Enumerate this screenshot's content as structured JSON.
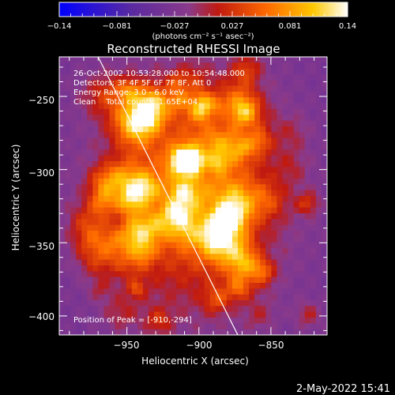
{
  "footer_date": "2-May-2022 15:41",
  "colorbar": {
    "ticks": [
      "-0.14",
      "-0.081",
      "-0.027",
      "0.027",
      "0.081",
      "0.14"
    ],
    "units": "(photons cm⁻² s⁻¹ asec⁻²)",
    "colors": [
      "#0000ff",
      "#5a2aa0",
      "#8a3a8a",
      "#c01a10",
      "#ff6a00",
      "#ffc800",
      "#ffffff"
    ]
  },
  "info": {
    "line1": "26-Oct-2002 10:53:28.000 to 10:54:48.000",
    "line2": "Detectors: 3F 4F 5F 6F 7F 8F, Att 0",
    "line3": "Energy Range: 3.0 - 6.0 keV",
    "line4": "Clean    Total counts: 1.65E+04",
    "peak": "Position of Peak = [-910,-294]"
  },
  "chart_data": {
    "type": "heatmap",
    "title": "Reconstructed RHESSI Image",
    "xlabel": "Heliocentric X (arcsec)",
    "ylabel": "Heliocentric Y (arcsec)",
    "xlim": [
      -997,
      -811
    ],
    "ylim": [
      -413,
      -223
    ],
    "xticks": [
      -950,
      -900,
      -850
    ],
    "yticks": [
      -250,
      -300,
      -350,
      -400
    ],
    "peak": {
      "x": -910,
      "y": -294,
      "value": 0.14
    },
    "value_range": [
      -0.14,
      0.14
    ],
    "limb_line": [
      [
        -970,
        -223
      ],
      [
        -873,
        -413
      ]
    ]
  }
}
